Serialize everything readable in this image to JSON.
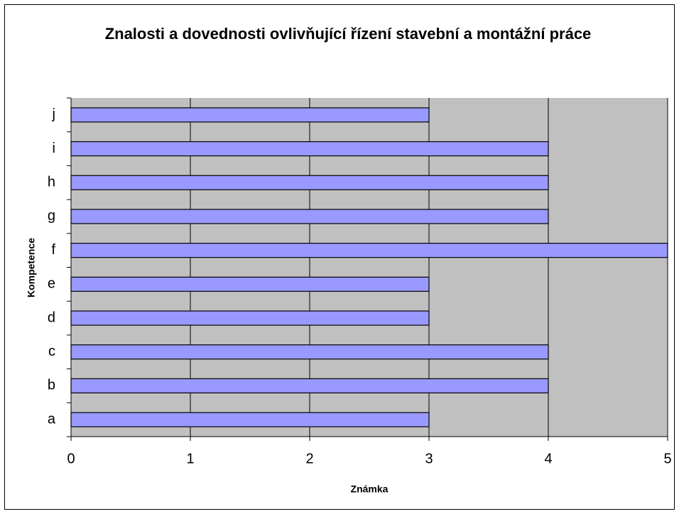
{
  "chart_data": {
    "type": "bar",
    "orientation": "horizontal",
    "title": "Znalosti a dovednosti ovlivňující řízení stavební a montážní práce",
    "x_label": "Známka",
    "y_label": "Kompetence",
    "categories": [
      "a",
      "b",
      "c",
      "d",
      "e",
      "f",
      "g",
      "h",
      "i",
      "j"
    ],
    "values": [
      3,
      4,
      4,
      3,
      3,
      5,
      4,
      4,
      4,
      3
    ],
    "color": "#9999ff",
    "plot_background": "#c0c0c0",
    "xlim": [
      0,
      5
    ],
    "xticks": [
      0,
      1,
      2,
      3,
      4,
      5
    ],
    "grid": true
  }
}
